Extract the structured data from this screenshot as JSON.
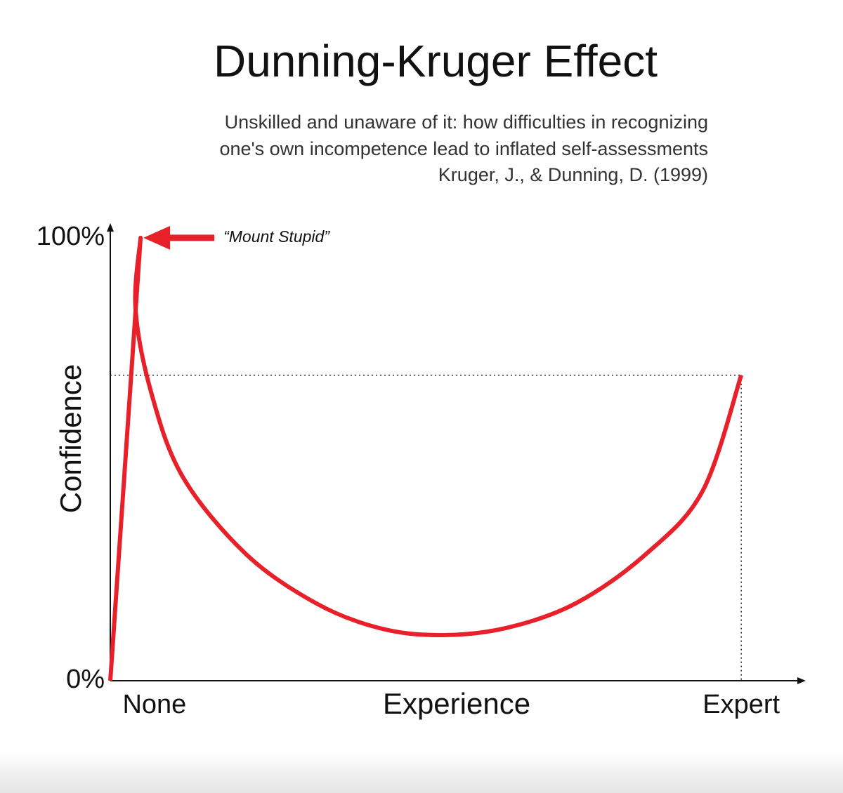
{
  "chart_data": {
    "type": "line",
    "title": "Dunning-Kruger Effect",
    "subtitle": [
      "Unskilled and unaware of it: how difficulties in recognizing",
      "one's own incompetence lead to inflated self-assessments",
      "Kruger, J., & Dunning, D. (1999)"
    ],
    "xlabel": "Experience",
    "ylabel": "Confidence",
    "annotation": "“Mount Stupid”",
    "x": [
      0,
      4.8,
      4,
      6.5,
      11.5,
      21.5,
      32.6,
      42.6,
      52.1,
      62.7,
      73.8,
      84.9,
      93.9,
      100
    ],
    "values": [
      0,
      100,
      84,
      65,
      46,
      28.6,
      17.5,
      11.9,
      10.3,
      11.9,
      17.5,
      28.6,
      42.9,
      69
    ],
    "color": "#e8202a",
    "xlim": [
      0,
      110
    ],
    "ylim": [
      0,
      103
    ],
    "xticks": [
      {
        "value": 7,
        "label": "None"
      },
      {
        "value": 100,
        "label": "Expert"
      }
    ],
    "yticks": [
      {
        "value": 0,
        "label": "0%"
      },
      {
        "value": 100,
        "label": "100%"
      }
    ]
  }
}
